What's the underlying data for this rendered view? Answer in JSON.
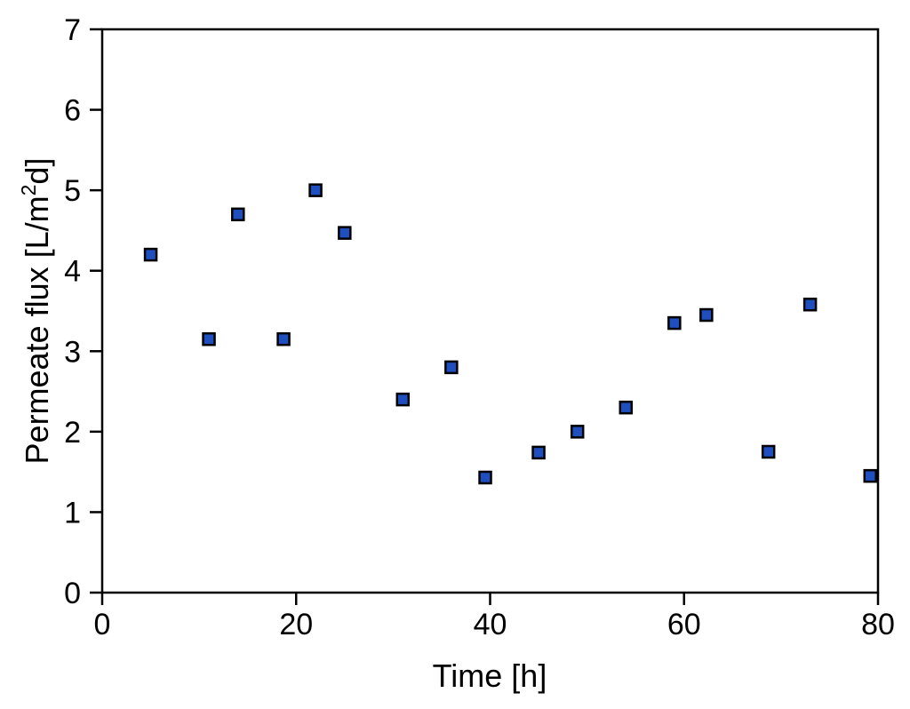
{
  "chart_data": {
    "type": "scatter",
    "title": "",
    "xlabel": "Time [h]",
    "ylabel": {
      "prefix": "Permeate flux [L/m",
      "superscript": "2",
      "suffix": "d]"
    },
    "xlim": [
      0,
      80
    ],
    "ylim": [
      0,
      7
    ],
    "xticks": [
      0,
      20,
      40,
      60,
      80
    ],
    "yticks": [
      0,
      1,
      2,
      3,
      4,
      5,
      6,
      7
    ],
    "grid": false,
    "marker": "square",
    "marker_color": "#1f4fbf",
    "marker_edge_color": "#000000",
    "series": [
      {
        "x": [
          5,
          11,
          14,
          18.7,
          22,
          25,
          31,
          36,
          39.5,
          45,
          49,
          54,
          59,
          62.3,
          68.7,
          73,
          79.2
        ],
        "y": [
          4.2,
          3.15,
          4.7,
          3.15,
          5.0,
          4.47,
          2.4,
          2.8,
          1.43,
          1.74,
          2.0,
          2.3,
          3.35,
          3.45,
          1.75,
          3.58,
          1.45
        ]
      }
    ]
  }
}
